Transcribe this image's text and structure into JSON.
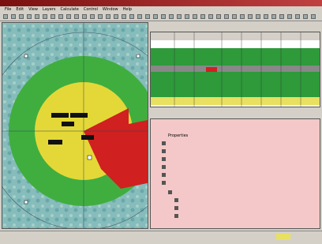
{
  "menu": [
    "File",
    "Edit",
    "View",
    "Layers",
    "Calculate",
    "Control",
    "Window",
    "Help"
  ],
  "tree": {
    "items": [
      "Properties"
    ]
  }
}
